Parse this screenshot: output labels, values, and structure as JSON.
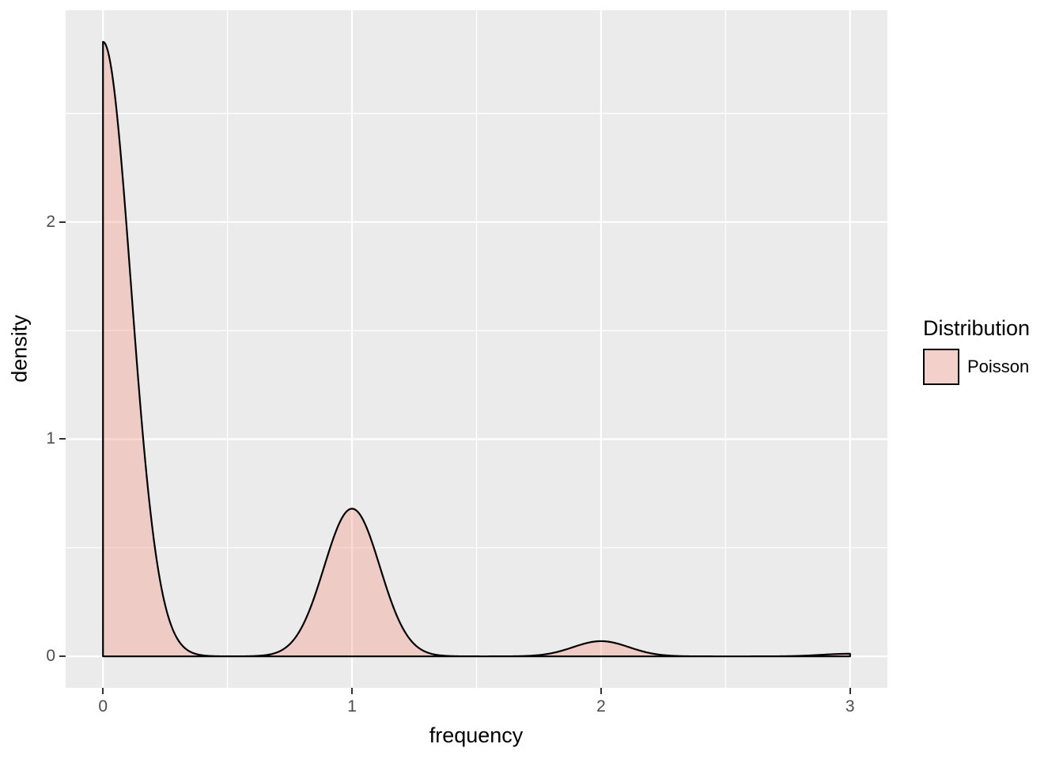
{
  "chart_data": {
    "type": "area",
    "subtype": "kernel-density",
    "title": "",
    "xlabel": "frequency",
    "ylabel": "density",
    "x_ticks": [
      0,
      1,
      2,
      3
    ],
    "x_tick_labels": [
      "0",
      "1",
      "2",
      "3"
    ],
    "y_ticks": [
      0,
      1,
      2
    ],
    "y_tick_labels": [
      "0",
      "1",
      "2"
    ],
    "x_minor_gridlines": [
      0.5,
      1.5,
      2.5
    ],
    "y_minor_gridlines": [
      0.5,
      1.5,
      2.5
    ],
    "xlim": [
      -0.15,
      3.15
    ],
    "ylim": [
      -0.145,
      2.975
    ],
    "grid": true,
    "curve": {
      "x_range": [
        0,
        3
      ],
      "peaks": [
        {
          "x": 0,
          "density": 2.83
        },
        {
          "x": 1,
          "density": 0.68
        },
        {
          "x": 2,
          "density": 0.07
        },
        {
          "x": 3,
          "density": 0.012
        }
      ],
      "bandwidth": 0.112
    },
    "legend": {
      "title": "Distribution",
      "position": "right",
      "entries": [
        {
          "label": "Poisson"
        }
      ]
    },
    "colors": {
      "panel_background": "#EBEBEB",
      "gridline": "#FFFFFF",
      "area_fill": "rgba(250,128,114,0.3)",
      "area_fill_composited": "#F0CBC7",
      "area_stroke": "#000000",
      "tick_text": "#4D4D4D",
      "tick_mark": "#333333",
      "axis_title_text": "#000000",
      "legend_key_background": "#F2F2F2"
    }
  }
}
